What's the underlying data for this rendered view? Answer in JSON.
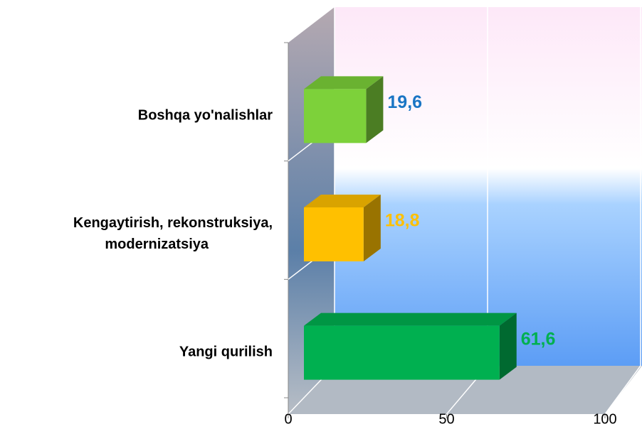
{
  "chart_data": {
    "type": "bar3d",
    "orientation": "horizontal",
    "categories": [
      "Boshqa yo'nalishlar",
      "Kengaytirish, rekonstruksiya,\nmodernizatsiya",
      "Yangi qurilish"
    ],
    "values": [
      19.6,
      18.8,
      61.6
    ],
    "value_labels": [
      "19,6",
      "18,8",
      "61,6"
    ],
    "colors": [
      "#7dd13a",
      "#ffc000",
      "#00b050"
    ],
    "label_colors": [
      "#1a75c4",
      "#ffc000",
      "#00b050"
    ],
    "xlim": [
      0,
      100
    ],
    "xticks": [
      0,
      50,
      100
    ],
    "grid": true
  }
}
